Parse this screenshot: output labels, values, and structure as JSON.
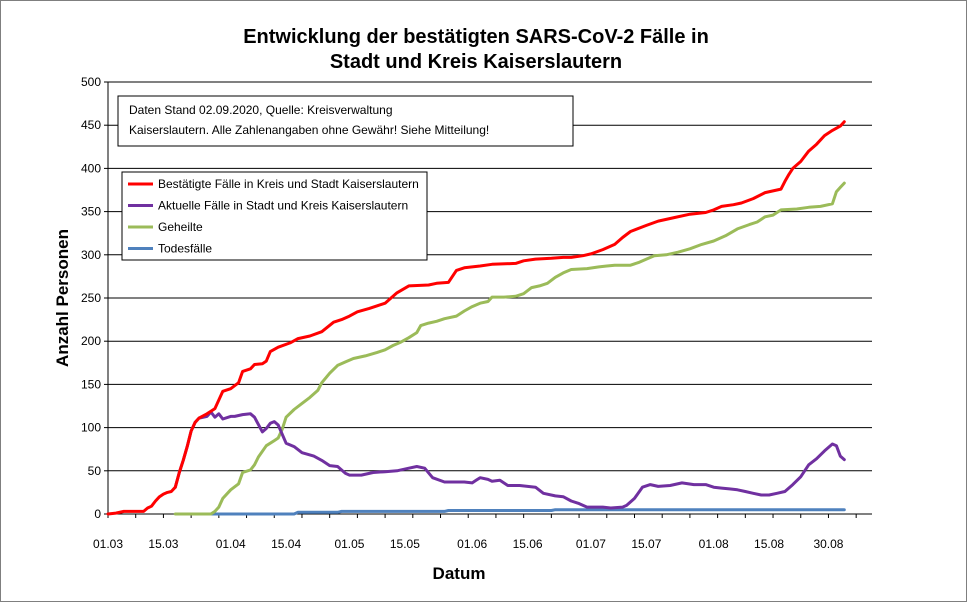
{
  "chart_data": {
    "type": "line",
    "title_lines": [
      "Entwicklung der bestätigten SARS-CoV-2 Fälle in",
      "Stadt und Kreis Kaiserslautern"
    ],
    "xlabel": "Datum",
    "ylabel": "Anzahl Personen",
    "ylim": [
      0,
      500
    ],
    "yticks": [
      0,
      50,
      100,
      150,
      200,
      250,
      300,
      350,
      400,
      450,
      500
    ],
    "xlim": [
      "2020-03-01",
      "2020-09-10"
    ],
    "xtick_labels": [
      {
        "date": "2020-03-01",
        "label": "01.03"
      },
      {
        "date": "2020-03-15",
        "label": "15.03"
      },
      {
        "date": "2020-04-01",
        "label": "01.04"
      },
      {
        "date": "2020-04-15",
        "label": "15.04"
      },
      {
        "date": "2020-05-01",
        "label": "01.05"
      },
      {
        "date": "2020-05-15",
        "label": "15.05"
      },
      {
        "date": "2020-06-01",
        "label": "01.06"
      },
      {
        "date": "2020-06-15",
        "label": "15.06"
      },
      {
        "date": "2020-07-01",
        "label": "01.07"
      },
      {
        "date": "2020-07-15",
        "label": "15.07"
      },
      {
        "date": "2020-08-01",
        "label": "01.08"
      },
      {
        "date": "2020-08-15",
        "label": "15.08"
      },
      {
        "date": "2020-08-30",
        "label": "30.08"
      }
    ],
    "grid": "horizontal",
    "legend_position": "upper-left",
    "annotation": [
      "Daten Stand 02.09.2020, Quelle: Kreisverwaltung",
      "Kaiserslautern. Alle Zahlenangaben ohne Gewähr! Siehe Mitteilung!"
    ],
    "series": [
      {
        "name": "Bestätigte Fälle in Kreis und Stadt Kaiserslautern",
        "color": "#ff0000",
        "points": [
          [
            "2020-03-01",
            0
          ],
          [
            "2020-03-03",
            1
          ],
          [
            "2020-03-05",
            3
          ],
          [
            "2020-03-10",
            3
          ],
          [
            "2020-03-11",
            7
          ],
          [
            "2020-03-12",
            9
          ],
          [
            "2020-03-13",
            15
          ],
          [
            "2020-03-14",
            20
          ],
          [
            "2020-03-15",
            23
          ],
          [
            "2020-03-16",
            25
          ],
          [
            "2020-03-17",
            26
          ],
          [
            "2020-03-18",
            31
          ],
          [
            "2020-03-19",
            48
          ],
          [
            "2020-03-20",
            62
          ],
          [
            "2020-03-21",
            78
          ],
          [
            "2020-03-22",
            96
          ],
          [
            "2020-03-23",
            106
          ],
          [
            "2020-03-24",
            111
          ],
          [
            "2020-03-26",
            116
          ],
          [
            "2020-03-27",
            119
          ],
          [
            "2020-03-28",
            122
          ],
          [
            "2020-03-30",
            142
          ],
          [
            "2020-04-01",
            145
          ],
          [
            "2020-04-03",
            152
          ],
          [
            "2020-04-04",
            165
          ],
          [
            "2020-04-06",
            168
          ],
          [
            "2020-04-07",
            173
          ],
          [
            "2020-04-09",
            174
          ],
          [
            "2020-04-10",
            177
          ],
          [
            "2020-04-11",
            188
          ],
          [
            "2020-04-13",
            193
          ],
          [
            "2020-04-16",
            198
          ],
          [
            "2020-04-18",
            203
          ],
          [
            "2020-04-21",
            206
          ],
          [
            "2020-04-24",
            211
          ],
          [
            "2020-04-27",
            222
          ],
          [
            "2020-04-29",
            225
          ],
          [
            "2020-05-01",
            229
          ],
          [
            "2020-05-03",
            234
          ],
          [
            "2020-05-06",
            238
          ],
          [
            "2020-05-08",
            241
          ],
          [
            "2020-05-10",
            244
          ],
          [
            "2020-05-13",
            256
          ],
          [
            "2020-05-16",
            264
          ],
          [
            "2020-05-21",
            265
          ],
          [
            "2020-05-23",
            267
          ],
          [
            "2020-05-26",
            268
          ],
          [
            "2020-05-28",
            282
          ],
          [
            "2020-05-30",
            285
          ],
          [
            "2020-06-03",
            287
          ],
          [
            "2020-06-06",
            289
          ],
          [
            "2020-06-12",
            290
          ],
          [
            "2020-06-14",
            293
          ],
          [
            "2020-06-17",
            295
          ],
          [
            "2020-06-21",
            296
          ],
          [
            "2020-06-24",
            297
          ],
          [
            "2020-06-26",
            297
          ],
          [
            "2020-06-29",
            299
          ],
          [
            "2020-07-01",
            301
          ],
          [
            "2020-07-04",
            306
          ],
          [
            "2020-07-07",
            312
          ],
          [
            "2020-07-09",
            320
          ],
          [
            "2020-07-11",
            327
          ],
          [
            "2020-07-15",
            334
          ],
          [
            "2020-07-18",
            339
          ],
          [
            "2020-07-22",
            343
          ],
          [
            "2020-07-26",
            347
          ],
          [
            "2020-07-30",
            349
          ],
          [
            "2020-08-01",
            352
          ],
          [
            "2020-08-03",
            356
          ],
          [
            "2020-08-06",
            358
          ],
          [
            "2020-08-08",
            360
          ],
          [
            "2020-08-11",
            365
          ],
          [
            "2020-08-14",
            372
          ],
          [
            "2020-08-18",
            376
          ],
          [
            "2020-08-19",
            385
          ],
          [
            "2020-08-20",
            393
          ],
          [
            "2020-08-21",
            400
          ],
          [
            "2020-08-23",
            408
          ],
          [
            "2020-08-25",
            420
          ],
          [
            "2020-08-27",
            428
          ],
          [
            "2020-08-29",
            438
          ],
          [
            "2020-08-31",
            444
          ],
          [
            "2020-09-02",
            449
          ],
          [
            "2020-09-03",
            454
          ]
        ]
      },
      {
        "name": "Aktuelle Fälle in Stadt und Kreis Kaiserslautern",
        "color": "#7030a0",
        "points": [
          [
            "2020-03-18",
            31
          ],
          [
            "2020-03-19",
            48
          ],
          [
            "2020-03-20",
            62
          ],
          [
            "2020-03-21",
            78
          ],
          [
            "2020-03-22",
            96
          ],
          [
            "2020-03-23",
            106
          ],
          [
            "2020-03-24",
            111
          ],
          [
            "2020-03-26",
            113
          ],
          [
            "2020-03-27",
            118
          ],
          [
            "2020-03-28",
            112
          ],
          [
            "2020-03-29",
            116
          ],
          [
            "2020-03-30",
            110
          ],
          [
            "2020-04-01",
            113
          ],
          [
            "2020-04-02",
            113
          ],
          [
            "2020-04-04",
            115
          ],
          [
            "2020-04-06",
            116
          ],
          [
            "2020-04-07",
            112
          ],
          [
            "2020-04-09",
            95
          ],
          [
            "2020-04-10",
            99
          ],
          [
            "2020-04-11",
            105
          ],
          [
            "2020-04-12",
            107
          ],
          [
            "2020-04-13",
            103
          ],
          [
            "2020-04-15",
            82
          ],
          [
            "2020-04-17",
            78
          ],
          [
            "2020-04-19",
            71
          ],
          [
            "2020-04-22",
            67
          ],
          [
            "2020-04-24",
            62
          ],
          [
            "2020-04-26",
            56
          ],
          [
            "2020-04-28",
            55
          ],
          [
            "2020-04-30",
            47
          ],
          [
            "2020-05-01",
            45
          ],
          [
            "2020-05-04",
            45
          ],
          [
            "2020-05-07",
            48
          ],
          [
            "2020-05-10",
            49
          ],
          [
            "2020-05-13",
            50
          ],
          [
            "2020-05-16",
            53
          ],
          [
            "2020-05-18",
            55
          ],
          [
            "2020-05-20",
            53
          ],
          [
            "2020-05-22",
            42
          ],
          [
            "2020-05-25",
            37
          ],
          [
            "2020-05-28",
            37
          ],
          [
            "2020-05-30",
            37
          ],
          [
            "2020-06-01",
            36
          ],
          [
            "2020-06-02",
            39
          ],
          [
            "2020-06-03",
            42
          ],
          [
            "2020-06-05",
            40
          ],
          [
            "2020-06-06",
            38
          ],
          [
            "2020-06-08",
            39
          ],
          [
            "2020-06-10",
            33
          ],
          [
            "2020-06-13",
            33
          ],
          [
            "2020-06-17",
            31
          ],
          [
            "2020-06-19",
            24
          ],
          [
            "2020-06-22",
            21
          ],
          [
            "2020-06-24",
            20
          ],
          [
            "2020-06-26",
            15
          ],
          [
            "2020-06-28",
            12
          ],
          [
            "2020-06-30",
            8
          ],
          [
            "2020-07-04",
            8
          ],
          [
            "2020-07-06",
            7
          ],
          [
            "2020-07-09",
            8
          ],
          [
            "2020-07-10",
            10
          ],
          [
            "2020-07-12",
            18
          ],
          [
            "2020-07-14",
            31
          ],
          [
            "2020-07-16",
            34
          ],
          [
            "2020-07-18",
            32
          ],
          [
            "2020-07-21",
            33
          ],
          [
            "2020-07-24",
            36
          ],
          [
            "2020-07-27",
            34
          ],
          [
            "2020-07-30",
            34
          ],
          [
            "2020-08-01",
            31
          ],
          [
            "2020-08-03",
            30
          ],
          [
            "2020-08-05",
            29
          ],
          [
            "2020-08-07",
            28
          ],
          [
            "2020-08-09",
            26
          ],
          [
            "2020-08-11",
            24
          ],
          [
            "2020-08-13",
            22
          ],
          [
            "2020-08-15",
            22
          ],
          [
            "2020-08-17",
            24
          ],
          [
            "2020-08-19",
            26
          ],
          [
            "2020-08-21",
            34
          ],
          [
            "2020-08-23",
            43
          ],
          [
            "2020-08-25",
            57
          ],
          [
            "2020-08-27",
            64
          ],
          [
            "2020-08-29",
            73
          ],
          [
            "2020-08-31",
            81
          ],
          [
            "2020-09-01",
            79
          ],
          [
            "2020-09-02",
            67
          ],
          [
            "2020-09-03",
            63
          ]
        ]
      },
      {
        "name": "Geheilte",
        "color": "#9bbb59",
        "points": [
          [
            "2020-03-18",
            0
          ],
          [
            "2020-03-27",
            0
          ],
          [
            "2020-03-28",
            3
          ],
          [
            "2020-03-29",
            8
          ],
          [
            "2020-03-30",
            18
          ],
          [
            "2020-04-01",
            28
          ],
          [
            "2020-04-03",
            35
          ],
          [
            "2020-04-04",
            48
          ],
          [
            "2020-04-06",
            51
          ],
          [
            "2020-04-07",
            57
          ],
          [
            "2020-04-08",
            66
          ],
          [
            "2020-04-10",
            79
          ],
          [
            "2020-04-12",
            85
          ],
          [
            "2020-04-13",
            88
          ],
          [
            "2020-04-14",
            98
          ],
          [
            "2020-04-15",
            112
          ],
          [
            "2020-04-17",
            121
          ],
          [
            "2020-04-19",
            128
          ],
          [
            "2020-04-21",
            135
          ],
          [
            "2020-04-23",
            143
          ],
          [
            "2020-04-24",
            152
          ],
          [
            "2020-04-26",
            163
          ],
          [
            "2020-04-28",
            172
          ],
          [
            "2020-04-30",
            176
          ],
          [
            "2020-05-02",
            180
          ],
          [
            "2020-05-05",
            183
          ],
          [
            "2020-05-08",
            187
          ],
          [
            "2020-05-10",
            190
          ],
          [
            "2020-05-12",
            195
          ],
          [
            "2020-05-14",
            199
          ],
          [
            "2020-05-16",
            204
          ],
          [
            "2020-05-18",
            210
          ],
          [
            "2020-05-19",
            218
          ],
          [
            "2020-05-21",
            221
          ],
          [
            "2020-05-23",
            223
          ],
          [
            "2020-05-25",
            226
          ],
          [
            "2020-05-28",
            229
          ],
          [
            "2020-05-30",
            235
          ],
          [
            "2020-06-01",
            240
          ],
          [
            "2020-06-03",
            244
          ],
          [
            "2020-06-05",
            246
          ],
          [
            "2020-06-06",
            251
          ],
          [
            "2020-06-09",
            251
          ],
          [
            "2020-06-12",
            252
          ],
          [
            "2020-06-14",
            255
          ],
          [
            "2020-06-16",
            262
          ],
          [
            "2020-06-18",
            264
          ],
          [
            "2020-06-20",
            267
          ],
          [
            "2020-06-22",
            274
          ],
          [
            "2020-06-24",
            279
          ],
          [
            "2020-06-26",
            283
          ],
          [
            "2020-06-30",
            284
          ],
          [
            "2020-07-03",
            286
          ],
          [
            "2020-07-05",
            287
          ],
          [
            "2020-07-07",
            288
          ],
          [
            "2020-07-09",
            288
          ],
          [
            "2020-07-11",
            288
          ],
          [
            "2020-07-13",
            291
          ],
          [
            "2020-07-15",
            295
          ],
          [
            "2020-07-17",
            299
          ],
          [
            "2020-07-20",
            300
          ],
          [
            "2020-07-23",
            303
          ],
          [
            "2020-07-26",
            307
          ],
          [
            "2020-07-29",
            312
          ],
          [
            "2020-08-01",
            316
          ],
          [
            "2020-08-04",
            322
          ],
          [
            "2020-08-07",
            330
          ],
          [
            "2020-08-10",
            335
          ],
          [
            "2020-08-12",
            338
          ],
          [
            "2020-08-14",
            344
          ],
          [
            "2020-08-16",
            346
          ],
          [
            "2020-08-18",
            352
          ],
          [
            "2020-08-22",
            353
          ],
          [
            "2020-08-25",
            355
          ],
          [
            "2020-08-28",
            356
          ],
          [
            "2020-08-31",
            359
          ],
          [
            "2020-09-01",
            373
          ],
          [
            "2020-09-02",
            378
          ],
          [
            "2020-09-03",
            383
          ]
        ]
      },
      {
        "name": "Todesfälle",
        "color": "#4f81bd",
        "points": [
          [
            "2020-03-25",
            0
          ],
          [
            "2020-04-17",
            0
          ],
          [
            "2020-04-18",
            2
          ],
          [
            "2020-04-28",
            2
          ],
          [
            "2020-04-29",
            3
          ],
          [
            "2020-05-25",
            3
          ],
          [
            "2020-05-26",
            4
          ],
          [
            "2020-06-21",
            4
          ],
          [
            "2020-06-22",
            5
          ],
          [
            "2020-09-03",
            5
          ]
        ]
      }
    ]
  }
}
